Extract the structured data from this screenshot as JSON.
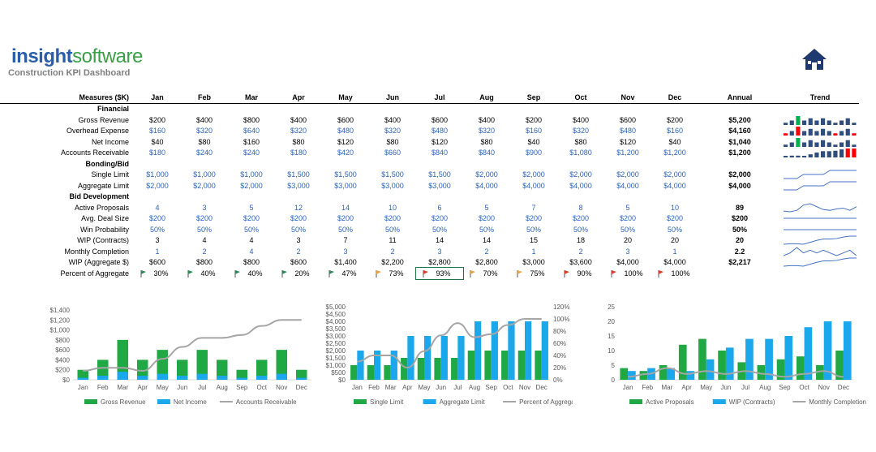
{
  "header": {
    "logo_part1": "insight",
    "logo_part2": "software",
    "subtitle": "Construction KPI Dashboard",
    "home_icon": "home-icon"
  },
  "table": {
    "measures_header": "Measures ($K)",
    "months": [
      "Jan",
      "Feb",
      "Mar",
      "Apr",
      "May",
      "Jun",
      "Jul",
      "Aug",
      "Sep",
      "Oct",
      "Nov",
      "Dec"
    ],
    "annual_header": "Annual",
    "trend_header": "Trend",
    "rows": [
      {
        "type": "section",
        "label": "Financial"
      },
      {
        "type": "data",
        "label": "Gross Revenue",
        "color": "black",
        "values": [
          "$200",
          "$400",
          "$800",
          "$400",
          "$600",
          "$400",
          "$600",
          "$400",
          "$200",
          "$400",
          "$600",
          "$200"
        ],
        "annual": "$5,200",
        "spark": "bar",
        "spark_values": [
          200,
          400,
          800,
          400,
          600,
          400,
          600,
          400,
          200,
          400,
          600,
          200
        ]
      },
      {
        "type": "data",
        "label": "Overhead Expense",
        "color": "blue",
        "values": [
          "$160",
          "$320",
          "$640",
          "$320",
          "$480",
          "$320",
          "$480",
          "$320",
          "$160",
          "$320",
          "$480",
          "$160"
        ],
        "annual": "$4,160",
        "spark": "bar",
        "spark_values": [
          160,
          320,
          640,
          320,
          480,
          320,
          480,
          320,
          160,
          320,
          480,
          160
        ]
      },
      {
        "type": "data",
        "label": "Net Income",
        "color": "black",
        "values": [
          "$40",
          "$80",
          "$160",
          "$80",
          "$120",
          "$80",
          "$120",
          "$80",
          "$40",
          "$80",
          "$120",
          "$40"
        ],
        "annual": "$1,040",
        "spark": "bar",
        "spark_values": [
          40,
          80,
          160,
          80,
          120,
          80,
          120,
          80,
          40,
          80,
          120,
          40
        ]
      },
      {
        "type": "data",
        "label": "Accounts Receivable",
        "color": "blue",
        "values": [
          "$180",
          "$240",
          "$240",
          "$180",
          "$420",
          "$660",
          "$840",
          "$840",
          "$900",
          "$1,080",
          "$1,200",
          "$1,200"
        ],
        "annual": "$1,200",
        "spark": "bar",
        "spark_values": [
          180,
          240,
          240,
          180,
          420,
          660,
          840,
          840,
          900,
          1080,
          1200,
          1200
        ]
      },
      {
        "type": "section",
        "label": "Bonding/Bid"
      },
      {
        "type": "data",
        "label": "Single Limit",
        "color": "blue",
        "values": [
          "$1,000",
          "$1,000",
          "$1,000",
          "$1,500",
          "$1,500",
          "$1,500",
          "$1,500",
          "$2,000",
          "$2,000",
          "$2,000",
          "$2,000",
          "$2,000"
        ],
        "annual": "$2,000",
        "spark": "line",
        "spark_values": [
          1000,
          1000,
          1000,
          1500,
          1500,
          1500,
          1500,
          2000,
          2000,
          2000,
          2000,
          2000
        ]
      },
      {
        "type": "data",
        "label": "Aggregate Limit",
        "color": "blue",
        "values": [
          "$2,000",
          "$2,000",
          "$2,000",
          "$3,000",
          "$3,000",
          "$3,000",
          "$3,000",
          "$4,000",
          "$4,000",
          "$4,000",
          "$4,000",
          "$4,000"
        ],
        "annual": "$4,000",
        "spark": "line",
        "spark_values": [
          2000,
          2000,
          2000,
          3000,
          3000,
          3000,
          3000,
          4000,
          4000,
          4000,
          4000,
          4000
        ]
      },
      {
        "type": "section",
        "label": "Bid Development"
      },
      {
        "type": "data",
        "label": "Active Proposals",
        "color": "blue",
        "values": [
          "4",
          "3",
          "5",
          "12",
          "14",
          "10",
          "6",
          "5",
          "7",
          "8",
          "5",
          "10"
        ],
        "annual": "89",
        "spark": "line",
        "spark_values": [
          4,
          3,
          5,
          12,
          14,
          10,
          6,
          5,
          7,
          8,
          5,
          10
        ]
      },
      {
        "type": "data",
        "label": "Avg. Deal Size",
        "color": "blue",
        "values": [
          "$200",
          "$200",
          "$200",
          "$200",
          "$200",
          "$200",
          "$200",
          "$200",
          "$200",
          "$200",
          "$200",
          "$200"
        ],
        "annual": "$200",
        "spark": "line",
        "spark_values": [
          200,
          200,
          200,
          200,
          200,
          200,
          200,
          200,
          200,
          200,
          200,
          200
        ]
      },
      {
        "type": "data",
        "label": "Win Probability",
        "color": "blue",
        "values": [
          "50%",
          "50%",
          "50%",
          "50%",
          "50%",
          "50%",
          "50%",
          "50%",
          "50%",
          "50%",
          "50%",
          "50%"
        ],
        "annual": "50%",
        "spark": "line",
        "spark_values": [
          50,
          50,
          50,
          50,
          50,
          50,
          50,
          50,
          50,
          50,
          50,
          50
        ]
      },
      {
        "type": "data",
        "label": "WIP (Contracts)",
        "color": "black",
        "values": [
          "3",
          "4",
          "4",
          "3",
          "7",
          "11",
          "14",
          "14",
          "15",
          "18",
          "20",
          "20"
        ],
        "annual": "20",
        "spark": "line",
        "spark_values": [
          3,
          4,
          4,
          3,
          7,
          11,
          14,
          14,
          15,
          18,
          20,
          20
        ]
      },
      {
        "type": "data",
        "label": "Monthly Completion",
        "color": "blue",
        "values": [
          "1",
          "2",
          "4",
          "2",
          "3",
          "2",
          "3",
          "2",
          "1",
          "2",
          "3",
          "1"
        ],
        "annual": "2.2",
        "spark": "line",
        "spark_values": [
          1,
          2,
          4,
          2,
          3,
          2,
          3,
          2,
          1,
          2,
          3,
          1
        ]
      },
      {
        "type": "data",
        "label": "WIP (Aggregate $)",
        "color": "black",
        "values": [
          "$600",
          "$800",
          "$800",
          "$600",
          "$1,400",
          "$2,200",
          "$2,800",
          "$2,800",
          "$3,000",
          "$3,600",
          "$4,000",
          "$4,000"
        ],
        "annual": "$2,217",
        "spark": "line",
        "spark_values": [
          600,
          800,
          800,
          600,
          1400,
          2200,
          2800,
          2800,
          3000,
          3600,
          4000,
          4000
        ]
      },
      {
        "type": "pct",
        "label": "Percent of Aggregate",
        "values": [
          "30%",
          "40%",
          "40%",
          "20%",
          "47%",
          "73%",
          "93%",
          "70%",
          "75%",
          "90%",
          "100%",
          "100%"
        ],
        "flags": [
          "#2e8b57",
          "#2e8b57",
          "#2e8b57",
          "#2e8b57",
          "#2e8b57",
          "#e8a34a",
          "#d9412b",
          "#e8a34a",
          "#e8a34a",
          "#d9412b",
          "#d9412b",
          "#d9412b"
        ]
      }
    ]
  },
  "colors": {
    "green": "#1fa843",
    "blue": "#1aa7ec",
    "gray": "#a6a6a6",
    "sparkblue": "#2f4e7e",
    "sparkred": "#ff0000",
    "sparkgreen": "#00b050"
  },
  "chart_data": [
    {
      "type": "bar",
      "categories": [
        "Jan",
        "Feb",
        "Mar",
        "Apr",
        "May",
        "Jun",
        "Jul",
        "Aug",
        "Sep",
        "Oct",
        "Nov",
        "Dec"
      ],
      "series": [
        {
          "name": "Gross Revenue",
          "kind": "bar",
          "values": [
            200,
            400,
            800,
            400,
            600,
            400,
            600,
            400,
            200,
            400,
            600,
            200
          ]
        },
        {
          "name": "Net Income",
          "kind": "bar",
          "values": [
            40,
            80,
            160,
            80,
            120,
            80,
            120,
            80,
            40,
            80,
            120,
            40
          ]
        },
        {
          "name": "Accounts Receivable",
          "kind": "line",
          "values": [
            180,
            240,
            240,
            180,
            420,
            660,
            840,
            840,
            900,
            1080,
            1200,
            1200
          ]
        }
      ],
      "ylim": [
        0,
        1400
      ],
      "yticks": [
        "$0",
        "$200",
        "$400",
        "$600",
        "$800",
        "$1,000",
        "$1,200",
        "$1,400"
      ]
    },
    {
      "type": "bar",
      "categories": [
        "Jan",
        "Feb",
        "Mar",
        "Apr",
        "May",
        "Jun",
        "Jul",
        "Aug",
        "Sep",
        "Oct",
        "Nov",
        "Dec"
      ],
      "series": [
        {
          "name": "Single Limit",
          "kind": "bar",
          "values": [
            1000,
            1000,
            1000,
            1500,
            1500,
            1500,
            1500,
            2000,
            2000,
            2000,
            2000,
            2000
          ]
        },
        {
          "name": "Aggregate Limit",
          "kind": "bar",
          "values": [
            2000,
            2000,
            2000,
            3000,
            3000,
            3000,
            3000,
            4000,
            4000,
            4000,
            4000,
            4000
          ]
        },
        {
          "name": "Percent of Aggregate",
          "kind": "line",
          "axis": "secondary",
          "values": [
            30,
            40,
            40,
            20,
            47,
            73,
            93,
            70,
            75,
            90,
            100,
            100
          ]
        }
      ],
      "ylim": [
        0,
        5000
      ],
      "yticks": [
        "$0",
        "$500",
        "$1,000",
        "$1,500",
        "$2,000",
        "$2,500",
        "$3,000",
        "$3,500",
        "$4,000",
        "$4,500",
        "$5,000"
      ],
      "y2lim": [
        0,
        120
      ],
      "y2ticks": [
        "0%",
        "20%",
        "40%",
        "60%",
        "80%",
        "100%",
        "120%"
      ]
    },
    {
      "type": "bar",
      "categories": [
        "Jan",
        "Feb",
        "Mar",
        "Apr",
        "May",
        "Jun",
        "Jul",
        "Aug",
        "Sep",
        "Oct",
        "Nov",
        "Dec"
      ],
      "series": [
        {
          "name": "Active Proposals",
          "kind": "bar",
          "values": [
            4,
            3,
            5,
            12,
            14,
            10,
            6,
            5,
            7,
            8,
            5,
            10
          ]
        },
        {
          "name": "WIP (Contracts)",
          "kind": "bar",
          "values": [
            3,
            4,
            4,
            3,
            7,
            11,
            14,
            14,
            15,
            18,
            20,
            20
          ]
        },
        {
          "name": "Monthly Completion",
          "kind": "line",
          "values": [
            1,
            2,
            4,
            2,
            3,
            2,
            3,
            2,
            1,
            2,
            3,
            1
          ]
        }
      ],
      "ylim": [
        0,
        25
      ],
      "yticks": [
        "0",
        "5",
        "10",
        "15",
        "20",
        "25"
      ]
    }
  ]
}
